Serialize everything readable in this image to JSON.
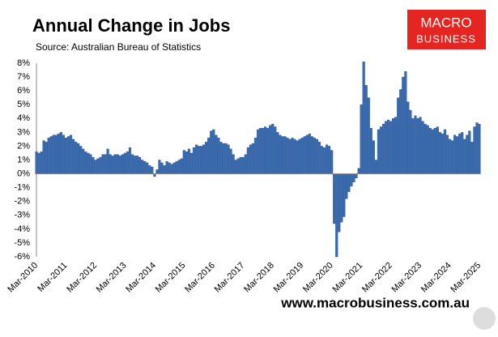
{
  "chart_data": {
    "type": "bar",
    "title": "Annual Change in Jobs",
    "subtitle": "Source: Australian Bureau of Statistics",
    "color": "#3a6bb0",
    "grid": false,
    "categories": [
      "Mar-2010",
      null,
      null,
      null,
      null,
      null,
      null,
      null,
      null,
      null,
      null,
      null,
      "Mar-2011",
      null,
      null,
      null,
      null,
      null,
      null,
      null,
      null,
      null,
      null,
      null,
      "Mar-2012",
      null,
      null,
      null,
      null,
      null,
      null,
      null,
      null,
      null,
      null,
      null,
      "Mar-2013",
      null,
      null,
      null,
      null,
      null,
      null,
      null,
      null,
      null,
      null,
      null,
      "Mar-2014",
      null,
      null,
      null,
      null,
      null,
      null,
      null,
      null,
      null,
      null,
      null,
      "Mar-2015",
      null,
      null,
      null,
      null,
      null,
      null,
      null,
      null,
      null,
      null,
      null,
      "Mar-2016",
      null,
      null,
      null,
      null,
      null,
      null,
      null,
      null,
      null,
      null,
      null,
      "Mar-2017",
      null,
      null,
      null,
      null,
      null,
      null,
      null,
      null,
      null,
      null,
      null,
      "Mar-2018",
      null,
      null,
      null,
      null,
      null,
      null,
      null,
      null,
      null,
      null,
      null,
      "Mar-2019",
      null,
      null,
      null,
      null,
      null,
      null,
      null,
      null,
      null,
      null,
      null,
      "Mar-2020",
      null,
      null,
      null,
      null,
      null,
      null,
      null,
      null,
      null,
      null,
      null,
      "Mar-2021",
      null,
      null,
      null,
      null,
      null,
      null,
      null,
      null,
      null,
      null,
      null,
      "Mar-2022",
      null,
      null,
      null,
      null,
      null,
      null,
      null,
      null,
      null,
      null,
      null,
      "Mar-2023",
      null,
      null,
      null,
      null,
      null,
      null,
      null,
      null,
      null,
      null,
      null,
      "Mar-2024",
      null,
      null,
      null,
      null,
      null,
      null,
      null,
      null,
      null,
      null,
      null,
      "Mar-2025"
    ],
    "values": [
      1.6,
      1.5,
      1.6,
      2.4,
      2.3,
      2.6,
      2.7,
      2.8,
      2.8,
      2.9,
      3.0,
      2.8,
      2.6,
      2.7,
      2.8,
      2.5,
      2.3,
      2.2,
      2.0,
      1.8,
      1.6,
      1.5,
      1.4,
      1.2,
      1.0,
      1.1,
      1.2,
      1.4,
      1.4,
      1.8,
      1.4,
      1.3,
      1.4,
      1.4,
      1.3,
      1.4,
      1.5,
      1.6,
      1.9,
      1.4,
      1.3,
      1.3,
      1.2,
      1.0,
      0.9,
      0.8,
      0.6,
      0.5,
      -0.2,
      0.3,
      1.0,
      0.8,
      0.6,
      0.9,
      0.8,
      0.7,
      0.8,
      0.9,
      1.0,
      1.1,
      1.7,
      1.6,
      1.8,
      1.5,
      1.9,
      2.1,
      2.0,
      2.0,
      2.1,
      2.3,
      2.6,
      3.1,
      3.2,
      2.8,
      2.6,
      2.3,
      2.2,
      2.2,
      2.1,
      1.8,
      1.4,
      1.0,
      1.1,
      1.2,
      1.2,
      1.4,
      1.9,
      2.1,
      2.2,
      2.6,
      3.2,
      3.3,
      3.3,
      3.4,
      3.3,
      3.5,
      3.6,
      3.4,
      3.0,
      2.8,
      2.7,
      2.7,
      2.6,
      2.5,
      2.6,
      2.5,
      2.4,
      2.5,
      2.6,
      2.7,
      2.8,
      2.9,
      2.7,
      2.6,
      2.5,
      2.3,
      2.0,
      1.9,
      2.1,
      2.0,
      1.7,
      -3.6,
      -6.0,
      -4.2,
      -3.5,
      -3.1,
      -1.8,
      -1.3,
      -0.9,
      -0.6,
      -0.3,
      0.4,
      5.0,
      8.1,
      6.4,
      5.5,
      3.3,
      2.4,
      1.0,
      3.2,
      3.4,
      3.6,
      3.8,
      3.9,
      3.8,
      4.0,
      4.1,
      5.5,
      6.1,
      7.0,
      7.4,
      5.2,
      4.6,
      4.0,
      4.2,
      4.0,
      4.1,
      3.8,
      3.6,
      3.5,
      3.3,
      3.2,
      3.3,
      3.4,
      3.0,
      2.9,
      3.2,
      2.8,
      2.5,
      2.4,
      2.8,
      2.7,
      2.9,
      3.0,
      2.5,
      2.8,
      3.1,
      2.3,
      3.4,
      3.7,
      3.6
    ],
    "ylim": [
      -6,
      8
    ],
    "yticks": [
      {
        "value": -6,
        "label": "-6%"
      },
      {
        "value": -5,
        "label": "-5%"
      },
      {
        "value": -4,
        "label": "-4%"
      },
      {
        "value": -3,
        "label": "-3%"
      },
      {
        "value": -2,
        "label": "-2%"
      },
      {
        "value": -1,
        "label": "-1%"
      },
      {
        "value": 0,
        "label": "0%"
      },
      {
        "value": 1,
        "label": "1%"
      },
      {
        "value": 2,
        "label": "2%"
      },
      {
        "value": 3,
        "label": "3%"
      },
      {
        "value": 4,
        "label": "4%"
      },
      {
        "value": 5,
        "label": "5%"
      },
      {
        "value": 6,
        "label": "6%"
      },
      {
        "value": 7,
        "label": "7%"
      },
      {
        "value": 8,
        "label": "8%"
      }
    ]
  },
  "logo": {
    "line1": "MACRO",
    "line2": "BUSINESS"
  },
  "footer": "www.macrobusiness.com.au"
}
